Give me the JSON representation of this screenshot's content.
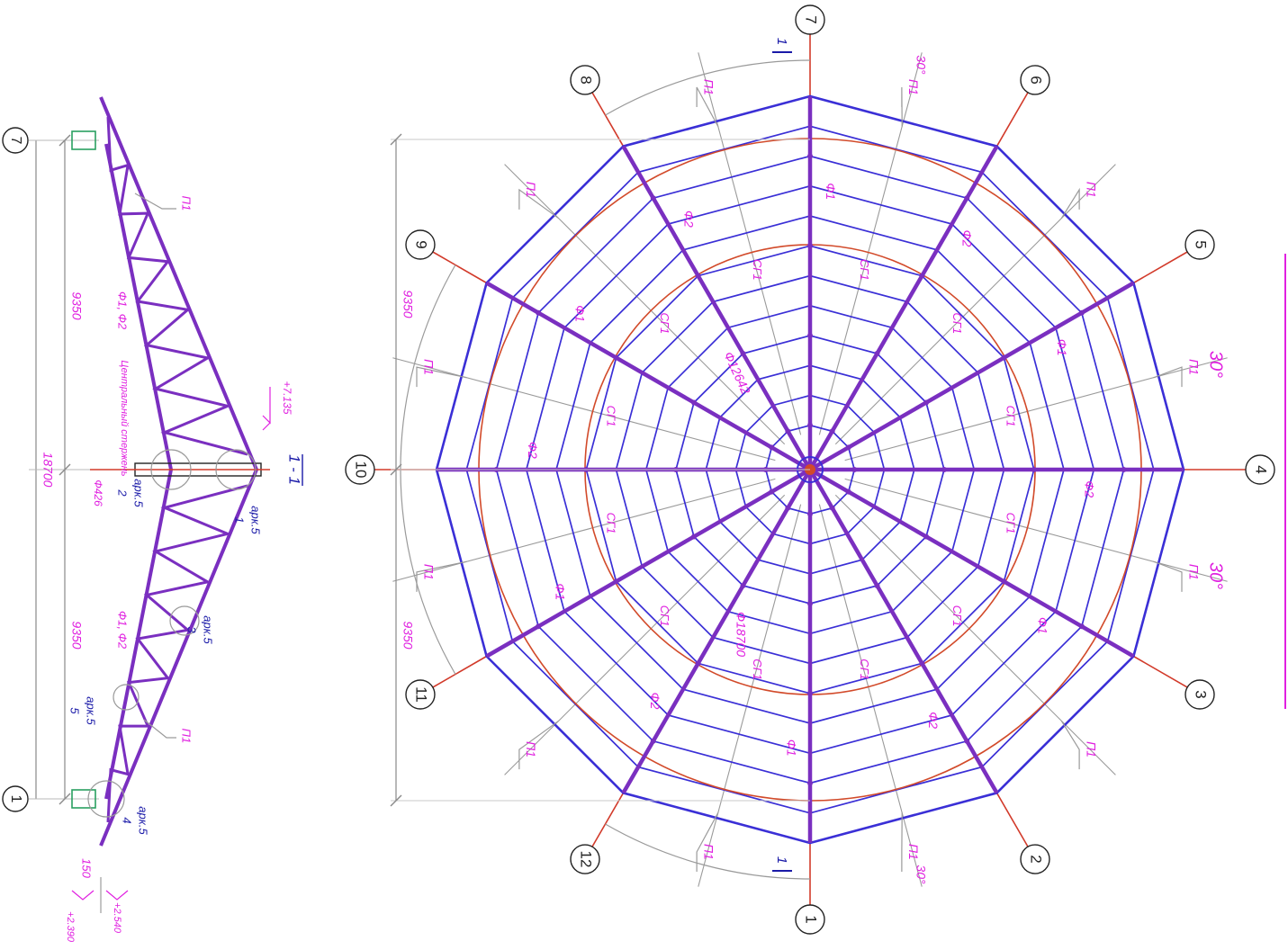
{
  "colors": {
    "roof_blue": "#3a2fd6",
    "rib_purple": "#7a2fc0",
    "ring_red": "#d24a2a",
    "axis_red": "#d23a2a",
    "magenta_text": "#e020e0",
    "label_blue": "#1a1aa8",
    "leader_gray": "#9a9a9a",
    "dim_gray": "#8a8a8a"
  },
  "plan": {
    "axes": [
      "1",
      "2",
      "3",
      "4",
      "5",
      "6",
      "7",
      "8",
      "9",
      "10",
      "11",
      "12"
    ],
    "rib_labels": [
      "Ф1",
      "Ф2",
      "Ф1",
      "Ф2",
      "Ф1",
      "Ф2",
      "Ф1",
      "Ф2",
      "Ф1",
      "Ф2",
      "Ф1",
      "Ф2"
    ],
    "ring_labels": [
      "СГ1",
      "СГ1",
      "СГ1",
      "СГ1",
      "СГ1",
      "СГ1",
      "СГ1",
      "СГ1",
      "СГ1",
      "СГ1",
      "СГ1",
      "СГ1"
    ],
    "purlin_label": "П1",
    "outer_diameter": "Ф18700",
    "inner_diameter": "Ф12642",
    "angle_label": "30°",
    "section_mark": "1",
    "dim_side": "9350",
    "ring_count": 12
  },
  "section": {
    "title": "1 - 1",
    "axis_left": "7",
    "axis_right": "1",
    "dim_half": "9350",
    "dim_total": "18700",
    "dim_support": "150",
    "level_top": "+7.135",
    "level_support_top": "+2.540",
    "level_support_bottom": "+2.390",
    "central_post_label": "Центральный стержень",
    "central_post_diameter": "Ф426",
    "truss_label": "Ф1, Ф2",
    "purlin_label": "П1",
    "callouts": [
      {
        "num": "1",
        "sheet": "арк.5"
      },
      {
        "num": "2",
        "sheet": "арк.5"
      },
      {
        "num": "3",
        "sheet": "арк.5"
      },
      {
        "num": "4",
        "sheet": "арк.5"
      },
      {
        "num": "5",
        "sheet": "арк.5"
      }
    ]
  }
}
